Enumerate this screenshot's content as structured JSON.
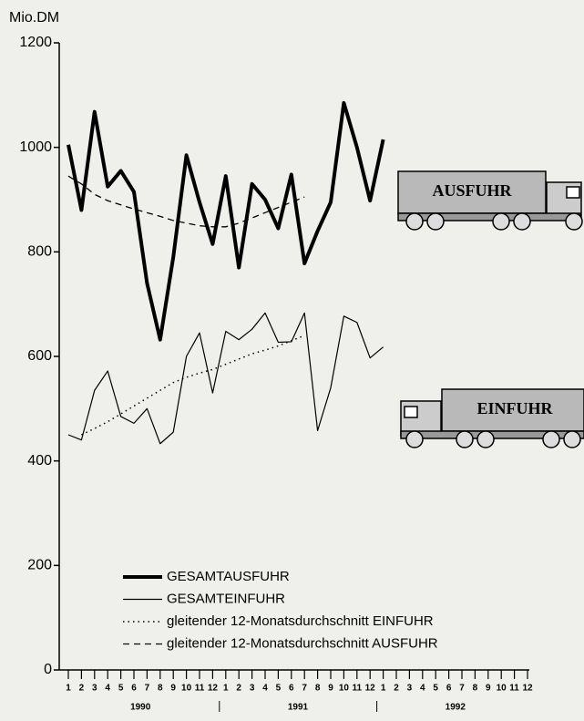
{
  "chart_data": {
    "type": "line",
    "y_label": "Mio.DM",
    "categories": [
      "1",
      "2",
      "3",
      "4",
      "5",
      "6",
      "7",
      "8",
      "9",
      "10",
      "11",
      "12",
      "1",
      "2",
      "3",
      "4",
      "5",
      "6",
      "7",
      "8",
      "9",
      "10",
      "11",
      "12",
      "1",
      "2",
      "3",
      "4",
      "5",
      "6",
      "7",
      "8",
      "9",
      "10",
      "11",
      "12"
    ],
    "years": [
      "1990",
      "1991",
      "1992"
    ],
    "ylim": [
      0,
      1200
    ],
    "yticks": [
      0,
      200,
      400,
      600,
      800,
      1000,
      1200
    ],
    "series": [
      {
        "name": "GESAMTAUSFUHR",
        "color": "#000000",
        "style": "solid",
        "width": 4,
        "values": [
          1005,
          880,
          1068,
          925,
          955,
          915,
          740,
          632,
          790,
          985,
          895,
          815,
          945,
          770,
          930,
          900,
          845,
          948,
          778,
          840,
          895,
          1085,
          1000,
          898,
          1015,
          null,
          null,
          null,
          null,
          null,
          null,
          null,
          null,
          null,
          null,
          null
        ]
      },
      {
        "name": "GESAMTEINFUHR",
        "color": "#000000",
        "style": "solid",
        "width": 1.2,
        "values": [
          450,
          440,
          535,
          572,
          485,
          472,
          500,
          433,
          455,
          600,
          645,
          530,
          648,
          632,
          652,
          683,
          627,
          628,
          683,
          458,
          540,
          677,
          665,
          597,
          618,
          null,
          null,
          null,
          null,
          null,
          null,
          null,
          null,
          null,
          null,
          null
        ]
      },
      {
        "name": "gleitender 12-Monatsdurchschnitt EINFUHR",
        "color": "#000000",
        "style": "dotted",
        "width": 1.5,
        "values": [
          null,
          450,
          462,
          475,
          490,
          505,
          520,
          535,
          550,
          560,
          568,
          575,
          585,
          595,
          605,
          612,
          620,
          630,
          640,
          null,
          null,
          null,
          null,
          null,
          null,
          null,
          null,
          null,
          null,
          null,
          null,
          null,
          null,
          null,
          null,
          null
        ]
      },
      {
        "name": "gleitender 12-Monatsdurchschnitt AUSFUHR",
        "color": "#000000",
        "style": "dashed",
        "width": 1.3,
        "values": [
          945,
          930,
          910,
          898,
          890,
          882,
          875,
          868,
          860,
          855,
          850,
          848,
          848,
          855,
          865,
          875,
          885,
          895,
          905,
          null,
          null,
          null,
          null,
          null,
          null,
          null,
          null,
          null,
          null,
          null,
          null,
          null,
          null,
          null,
          null,
          null
        ]
      }
    ],
    "truck_labels": [
      "AUSFUHR",
      "EINFUHR"
    ]
  }
}
